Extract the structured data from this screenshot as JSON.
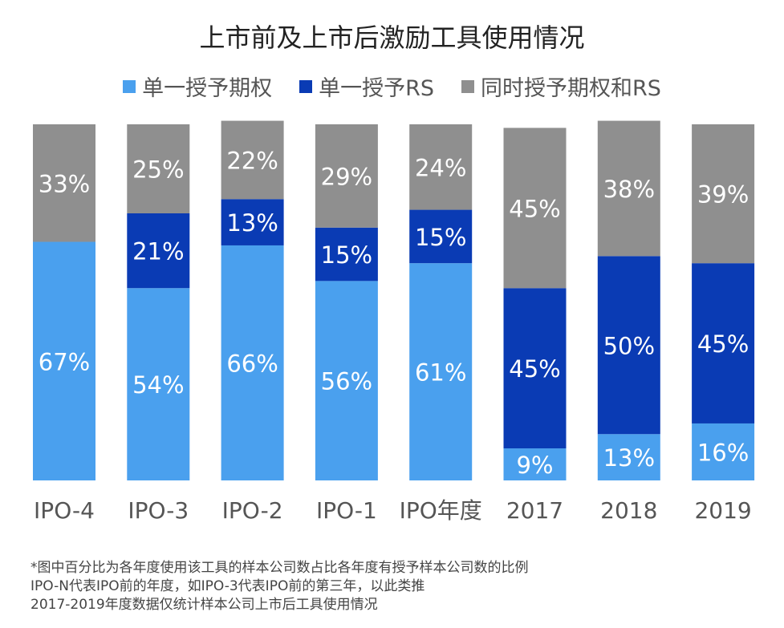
{
  "chart_data": {
    "type": "bar",
    "stacked": true,
    "title": "上市前及上市后激励工具使用情况",
    "categories": [
      "IPO-4",
      "IPO-3",
      "IPO-2",
      "IPO-1",
      "IPO年度",
      "2017",
      "2018",
      "2019"
    ],
    "series": [
      {
        "name": "单一授予期权",
        "color": "#4aa0ee",
        "values": [
          67,
          54,
          66,
          56,
          61,
          9,
          13,
          16
        ]
      },
      {
        "name": "单一授予RS",
        "color": "#0a3bb4",
        "values": [
          0,
          21,
          13,
          15,
          15,
          45,
          50,
          45
        ]
      },
      {
        "name": "同时授予期权和RS",
        "color": "#8f8f8f",
        "values": [
          33,
          25,
          22,
          29,
          24,
          45,
          38,
          39
        ]
      }
    ],
    "value_format": "percent",
    "ylim": [
      0,
      100
    ],
    "grid": false,
    "legend_position": "top",
    "footnote": [
      "*图中百分比为各年度使用该工具的样本公司数占比各年度有授予样本公司数的比例",
      "IPO-N代表IPO前的年度，如IPO-3代表IPO前的第三年，以此类推",
      "2017-2019年度数据仅统计样本公司上市后工具使用情况"
    ]
  }
}
